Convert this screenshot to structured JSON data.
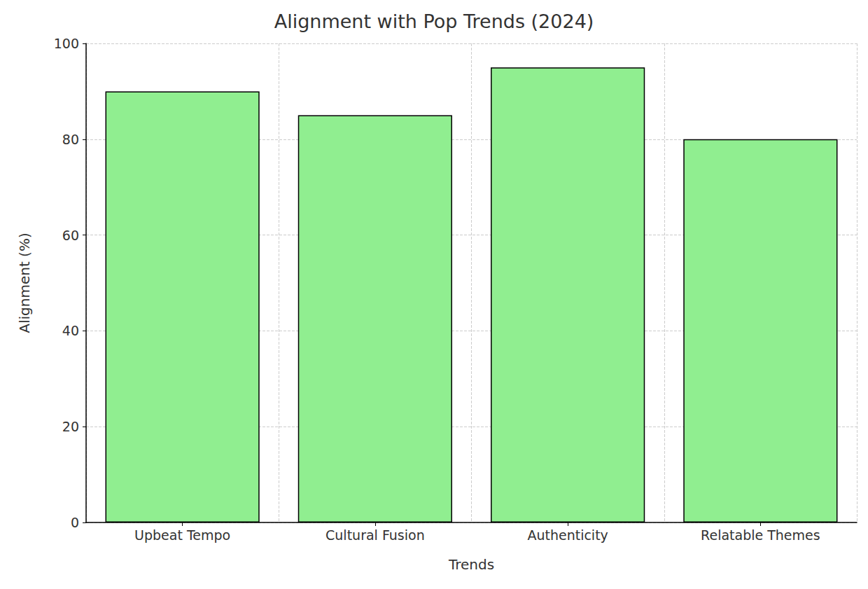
{
  "chart_data": {
    "type": "bar",
    "title": "Alignment with Pop Trends (2024)",
    "x_label": "Trends",
    "y_label": "Alignment (%)",
    "categories": [
      "Upbeat Tempo",
      "Cultural Fusion",
      "Authenticity",
      "Relatable Themes"
    ],
    "values": [
      90,
      85,
      95,
      80
    ],
    "color": "#90ee90",
    "ylim": [
      0,
      100
    ],
    "yticks": [
      0,
      20,
      40,
      60,
      80,
      100
    ],
    "grid": true
  }
}
